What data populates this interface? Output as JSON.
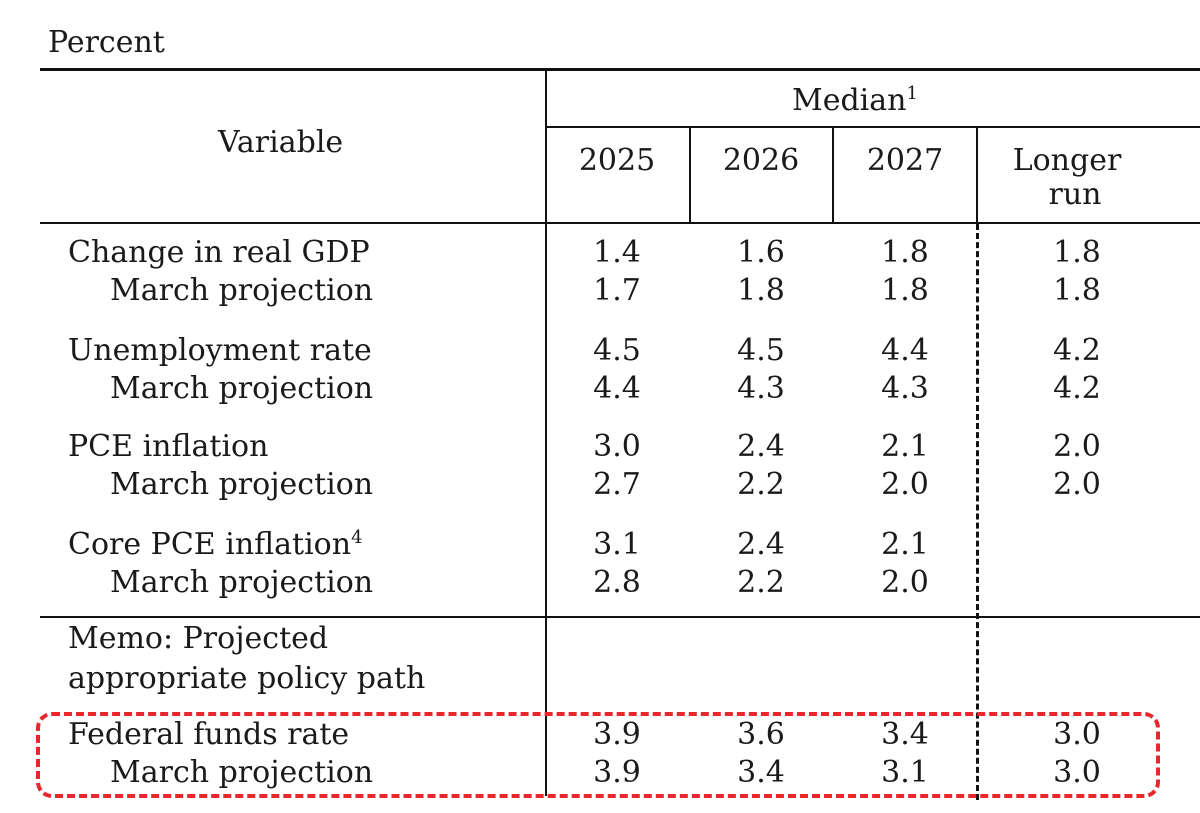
{
  "unit_label": "Percent",
  "header": {
    "variable": "Variable",
    "median": "Median",
    "median_sup": "1",
    "years": [
      "2025",
      "2026",
      "2027"
    ],
    "longer_run_line1": "Longer",
    "longer_run_line2": "run"
  },
  "rows": [
    {
      "label": "Change in real GDP",
      "values": [
        "1.4",
        "1.6",
        "1.8",
        "1.8"
      ]
    },
    {
      "label": "March projection",
      "values": [
        "1.7",
        "1.8",
        "1.8",
        "1.8"
      ]
    },
    {
      "label": "Unemployment rate",
      "values": [
        "4.5",
        "4.5",
        "4.4",
        "4.2"
      ]
    },
    {
      "label": "March projection",
      "values": [
        "4.4",
        "4.3",
        "4.3",
        "4.2"
      ]
    },
    {
      "label": "PCE inflation",
      "values": [
        "3.0",
        "2.4",
        "2.1",
        "2.0"
      ]
    },
    {
      "label": "March projection",
      "values": [
        "2.7",
        "2.2",
        "2.0",
        "2.0"
      ]
    },
    {
      "label": "Core PCE inflation",
      "sup": "4",
      "values": [
        "3.1",
        "2.4",
        "2.1",
        ""
      ]
    },
    {
      "label": "March projection",
      "values": [
        "2.8",
        "2.2",
        "2.0",
        ""
      ]
    }
  ],
  "memo": {
    "line1": "Memo: Projected",
    "line2": "appropriate policy path"
  },
  "policy_rows": [
    {
      "label": "Federal funds rate",
      "values": [
        "3.9",
        "3.6",
        "3.4",
        "3.0"
      ]
    },
    {
      "label": "March projection",
      "values": [
        "3.9",
        "3.4",
        "3.1",
        "3.0"
      ]
    }
  ],
  "highlight_color": "#e8262b"
}
